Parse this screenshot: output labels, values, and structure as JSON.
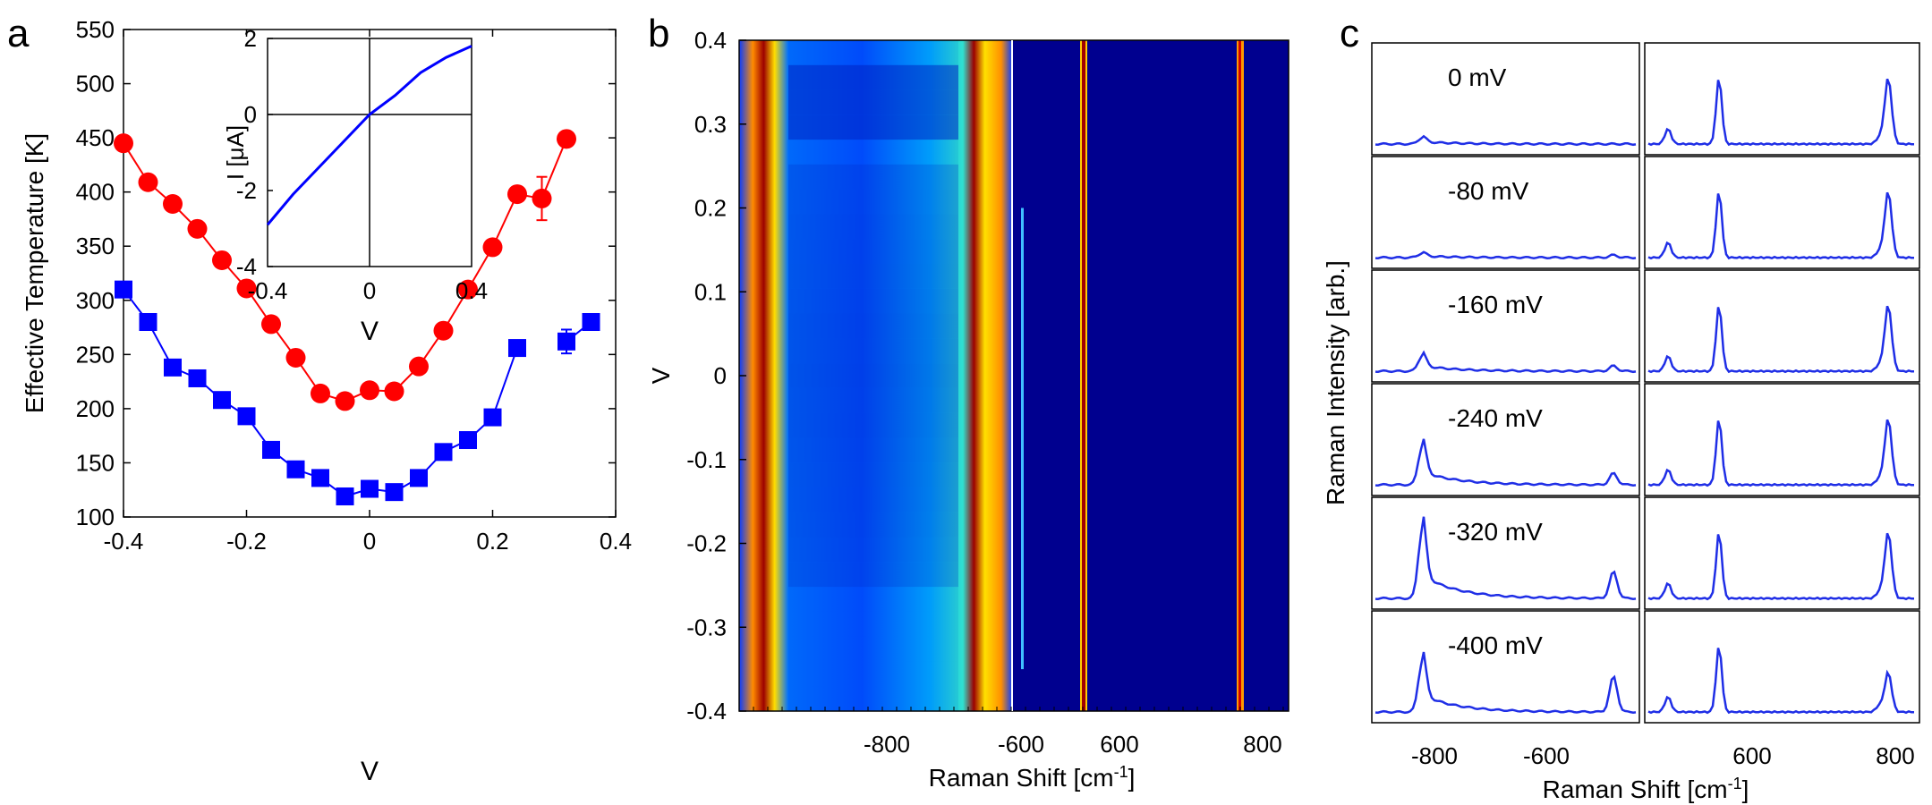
{
  "panel_letters": [
    "a",
    "b",
    "c"
  ],
  "colors": {
    "red_series": "#ff0000",
    "blue_series": "#0000ff",
    "spectrum_line": "#1f2ee6",
    "heatmap_bg": "#00008f"
  },
  "chart_data": [
    {
      "panel": "a",
      "type": "scatter",
      "xlabel": "V",
      "ylabel": "Effective Temperature [K]",
      "xlim": [
        -0.4,
        0.4
      ],
      "ylim": [
        100,
        550
      ],
      "xticks": [
        "-0.4",
        "-0.2",
        "0",
        "0.2",
        "0.4"
      ],
      "yticks": [
        "100",
        "150",
        "200",
        "250",
        "300",
        "350",
        "400",
        "450",
        "500",
        "550"
      ],
      "series": [
        {
          "marker": "circle",
          "color": "#ff0000",
          "x": [
            -0.4,
            -0.36,
            -0.32,
            -0.28,
            -0.24,
            -0.2,
            -0.16,
            -0.12,
            -0.08,
            -0.04,
            0,
            0.04,
            0.08,
            0.12,
            0.16,
            0.2,
            0.24,
            0.28,
            0.32
          ],
          "y": [
            445,
            409,
            389,
            366,
            337,
            311,
            278,
            247,
            214,
            207,
            217,
            216,
            239,
            272,
            310,
            349,
            398,
            394,
            449
          ],
          "error_bar_at": 0.28,
          "error": 20
        },
        {
          "marker": "square",
          "color": "#0000ff",
          "x": [
            -0.4,
            -0.36,
            -0.32,
            -0.28,
            -0.24,
            -0.2,
            -0.16,
            -0.12,
            -0.08,
            -0.04,
            0,
            0.04,
            0.08,
            0.12,
            0.16,
            0.2,
            0.24,
            0.32,
            0.36
          ],
          "y": [
            310,
            280,
            238,
            228,
            208,
            193,
            162,
            144,
            136,
            119,
            126,
            123,
            136,
            160,
            171,
            192,
            256,
            262,
            280
          ],
          "error_bar_at": 0.32,
          "error": 11
        }
      ],
      "inset": {
        "type": "line",
        "xlabel": "V",
        "ylabel": "I [μA]",
        "xlim": [
          -0.4,
          0.4
        ],
        "ylim": [
          -4,
          2
        ],
        "xticks": [
          "-0.4",
          "0",
          "0.4"
        ],
        "yticks": [
          "-4",
          "-2",
          "0",
          "2"
        ],
        "x": [
          -0.4,
          -0.3,
          -0.2,
          -0.1,
          0,
          0.1,
          0.2,
          0.3,
          0.4
        ],
        "y": [
          -2.9,
          -2.1,
          -1.4,
          -0.7,
          0,
          0.5,
          1.1,
          1.5,
          1.8
        ]
      }
    },
    {
      "panel": "b",
      "type": "heatmap",
      "xlabel": "Raman Shift [cm",
      "xlabel_sup": "-1",
      "xlabel_end": "]",
      "ylabel": "V",
      "ylim": [
        -0.4,
        0.4
      ],
      "xticks": [
        "-800",
        "-600",
        "600",
        "800"
      ],
      "yticks": [
        "-0.4",
        "-0.3",
        "-0.2",
        "-0.1",
        "0",
        "0.1",
        "0.2",
        "0.3",
        "0.4"
      ],
      "left_segment": {
        "peaks_cm1": [
          -860,
          -520
        ],
        "background_band_cm1": [
          -940,
          -490
        ]
      },
      "right_segment": {
        "peaks_cm1": [
          520,
          875
        ]
      }
    },
    {
      "panel": "c",
      "type": "line",
      "xlabel": "Raman Shift [cm",
      "xlabel_sup": "-1",
      "xlabel_end": "]",
      "ylabel": "Raman Intensity [arb.]",
      "xticks": [
        "-800",
        "-600",
        "600",
        "800"
      ],
      "rows": [
        {
          "label": "0 mV",
          "antistokes_amp": 0.07,
          "as_peak2": 0.0,
          "stokes_amp": 0.75
        },
        {
          "label": "-80 mV",
          "antistokes_amp": 0.05,
          "as_peak2": 0.03,
          "stokes_amp": 0.75
        },
        {
          "label": "-160 mV",
          "antistokes_amp": 0.17,
          "as_peak2": 0.06,
          "stokes_amp": 0.75
        },
        {
          "label": "-240 mV",
          "antistokes_amp": 0.42,
          "as_peak2": 0.13,
          "stokes_amp": 0.75
        },
        {
          "label": "-320 mV",
          "antistokes_amp": 0.75,
          "as_peak2": 0.3,
          "stokes_amp": 0.75
        },
        {
          "label": "-400 mV",
          "antistokes_amp": 0.55,
          "as_peak2": 0.4,
          "stokes_amp": 0.75
        }
      ]
    }
  ]
}
